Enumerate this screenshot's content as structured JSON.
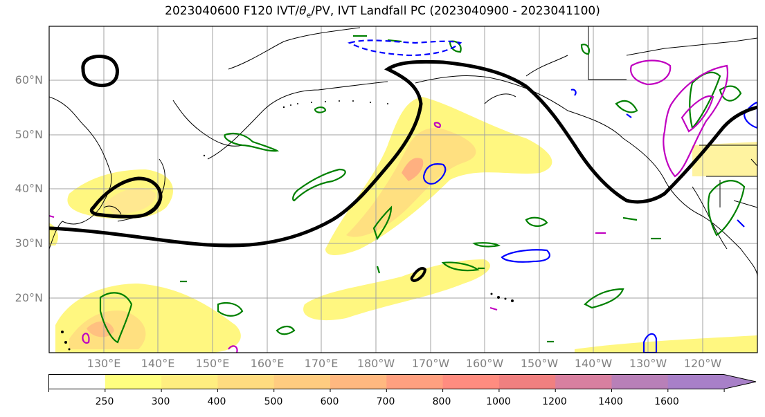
{
  "title_prefix": "2023040600 F120 IVT/",
  "title_theta": "θ",
  "title_sub": "e",
  "title_suffix": "/PV, IVT Landfall PC (2023040900 - 2023041100)",
  "lat_labels": [
    "60°N",
    "50°N",
    "40°N",
    "30°N",
    "20°N"
  ],
  "lon_labels": [
    "130°E",
    "140°E",
    "150°E",
    "160°E",
    "170°E",
    "180°W",
    "170°W",
    "160°W",
    "150°W",
    "140°W",
    "130°W",
    "120°W"
  ],
  "colorbar": {
    "labels": [
      "250",
      "300",
      "400",
      "500",
      "600",
      "700",
      "800",
      "1000",
      "1200",
      "1400",
      "1600"
    ],
    "colors": [
      "#ffffff",
      "#ffff80",
      "#ffee80",
      "#ffdc80",
      "#ffcc80",
      "#ffb880",
      "#ffa080",
      "#ff8c80",
      "#f08080",
      "#d880a0",
      "#b880b8",
      "#a880c8"
    ]
  },
  "colors": {
    "ivt_low": "#fff580",
    "ivt_mid": "#ffd880",
    "ivt_high": "#ffb080",
    "pv_contour": "#000000",
    "theta_pos": "#008000",
    "theta_neg": "#0000ff",
    "landfall": "#c000c0",
    "grid": "#a0a0a0"
  }
}
